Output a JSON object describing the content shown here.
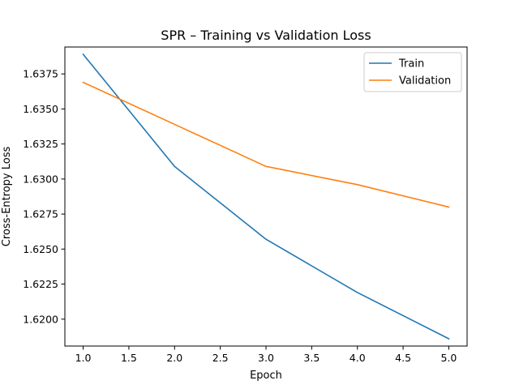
{
  "chart_data": {
    "type": "line",
    "title": "SPR – Training vs Validation Loss",
    "xlabel": "Epoch",
    "ylabel": "Cross-Entropy Loss",
    "x": [
      1,
      2,
      3,
      4,
      5
    ],
    "series": [
      {
        "name": "Train",
        "color": "#1f77b4",
        "values": [
          1.6389,
          1.6309,
          1.6257,
          1.6219,
          1.6186
        ]
      },
      {
        "name": "Validation",
        "color": "#ff7f0e",
        "values": [
          1.6369,
          1.6339,
          1.6309,
          1.6296,
          1.628
        ]
      }
    ],
    "xlim": [
      0.8,
      5.2
    ],
    "ylim": [
      1.61808,
      1.63942
    ],
    "xticks": [
      1.0,
      1.5,
      2.0,
      2.5,
      3.0,
      3.5,
      4.0,
      4.5,
      5.0
    ],
    "xtick_labels": [
      "1.0",
      "1.5",
      "2.0",
      "2.5",
      "3.0",
      "3.5",
      "4.0",
      "4.5",
      "5.0"
    ],
    "yticks": [
      1.62,
      1.6225,
      1.625,
      1.6275,
      1.63,
      1.6325,
      1.635,
      1.6375
    ],
    "ytick_labels": [
      "1.6200",
      "1.6225",
      "1.6250",
      "1.6275",
      "1.6300",
      "1.6325",
      "1.6350",
      "1.6375"
    ],
    "grid": false,
    "legend": "top-right"
  }
}
